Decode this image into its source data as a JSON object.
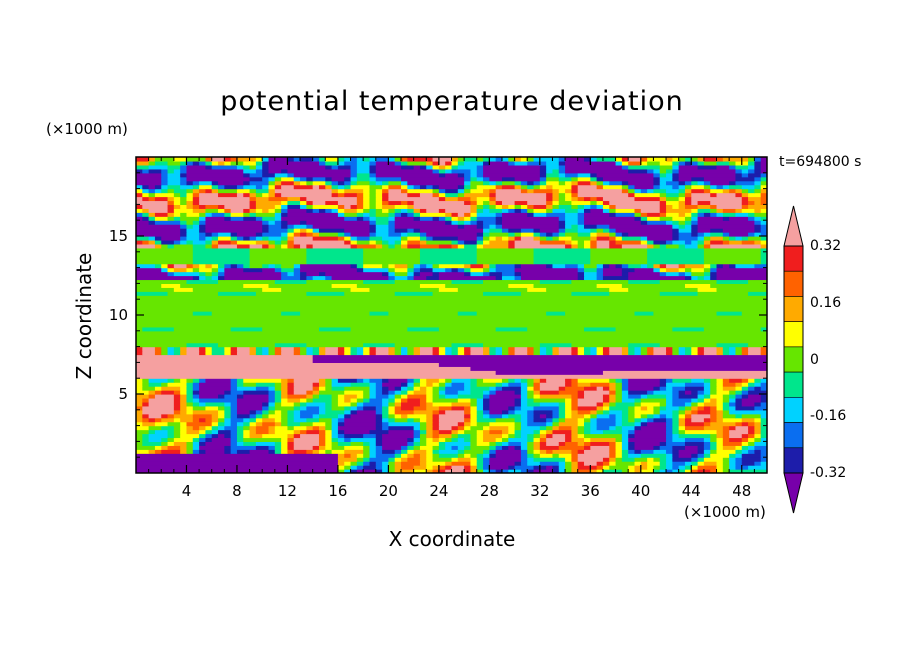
{
  "chart_data": {
    "type": "heatmap",
    "title": "potential temperature deviation",
    "xlabel": "X coordinate",
    "ylabel": "Z coordinate",
    "x_unit": "(×1000 m)",
    "y_unit": "(×1000 m)",
    "time_label": "t=694800 s",
    "xlim": [
      0,
      50
    ],
    "ylim": [
      0,
      20
    ],
    "x_ticks": [
      4,
      8,
      12,
      16,
      20,
      24,
      28,
      32,
      36,
      40,
      44,
      48
    ],
    "y_ticks": [
      5,
      10,
      15
    ],
    "colorbar": {
      "levels": [
        -0.4,
        -0.32,
        -0.24,
        -0.16,
        -0.08,
        0,
        0.08,
        0.16,
        0.24,
        0.32,
        0.4
      ],
      "colors": [
        "#7700aa",
        "#1d1daa",
        "#0a6ef0",
        "#00d2ff",
        "#00e68c",
        "#66e600",
        "#ffff00",
        "#ffaa00",
        "#ff6200",
        "#f01e1e",
        "#f5a0a0"
      ],
      "tick_labels": [
        "0.32",
        "0.16",
        "0",
        "-0.16",
        "-0.32"
      ],
      "tick_values": [
        0.32,
        0.16,
        0,
        -0.16,
        -0.32
      ],
      "extend": "both"
    },
    "bands_description_values": [
      {
        "z_range": [
          0,
          7.5
        ],
        "pattern": "convective mixed, values -0.4 to 0.4"
      },
      {
        "z_range": [
          7.5,
          12.5
        ],
        "value": 0.04
      },
      {
        "z_range": [
          12.5,
          20
        ],
        "pattern": "alternating -0.4 and 0.4 layers"
      }
    ]
  }
}
